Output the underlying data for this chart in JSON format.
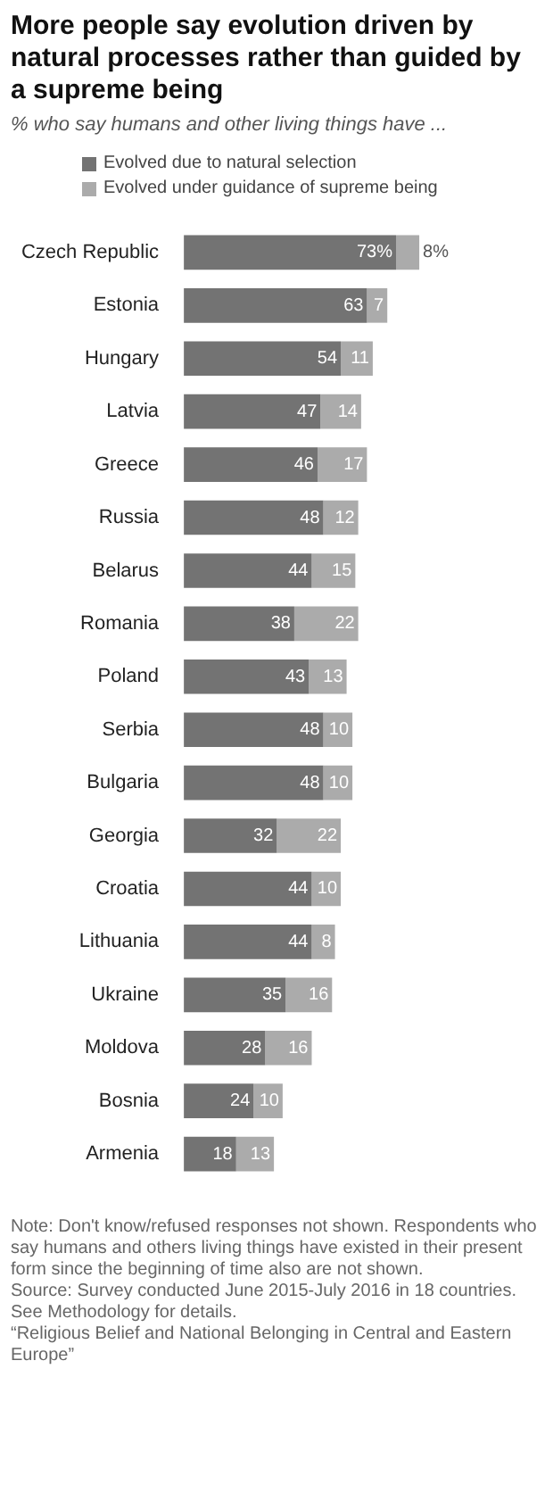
{
  "chart_data": {
    "type": "bar",
    "orientation": "horizontal",
    "stacked": true,
    "title": "More people say evolution driven by natural processes rather than guided by a supreme being",
    "subtitle": "% who say humans and other living things have ...",
    "legend": "top left",
    "tick_labels": "y",
    "categories": [
      "Czech Republic",
      "Estonia",
      "Hungary",
      "Latvia",
      "Greece",
      "Russia",
      "Belarus",
      "Romania",
      "Poland",
      "Serbia",
      "Bulgaria",
      "Georgia",
      "Croatia",
      "Lithuania",
      "Ukraine",
      "Moldova",
      "Bosnia",
      "Armenia"
    ],
    "series": [
      {
        "name": "Evolved due to natural selection",
        "color": "#737373",
        "values": [
          73,
          63,
          54,
          47,
          46,
          48,
          44,
          38,
          43,
          48,
          48,
          32,
          44,
          44,
          35,
          28,
          24,
          18
        ],
        "value_labels": [
          "73%",
          "63",
          "54",
          "47",
          "46",
          "48",
          "44",
          "38",
          "43",
          "48",
          "48",
          "32",
          "44",
          "44",
          "35",
          "28",
          "24",
          "18"
        ]
      },
      {
        "name": "Evolved under guidance of supreme being",
        "color": "#ababab",
        "values": [
          8,
          7,
          11,
          14,
          17,
          12,
          15,
          22,
          13,
          10,
          10,
          22,
          10,
          8,
          16,
          16,
          10,
          13
        ],
        "value_labels": [
          "8%",
          "7",
          "11",
          "14",
          "17",
          "12",
          "15",
          "22",
          "13",
          "10",
          "10",
          "22",
          "10",
          "8",
          "16",
          "16",
          "10",
          "13"
        ]
      }
    ],
    "annotations": [
      "Note: Don't know/refused responses not shown. Respondents who say humans and others living things have existed in their present form since the beginning of time also are not shown.",
      "Source: Survey conducted June 2015-July 2016 in 18 countries. See Methodology for details.",
      "“Religious Belief and National Belonging in Central and Eastern Europe”"
    ]
  }
}
